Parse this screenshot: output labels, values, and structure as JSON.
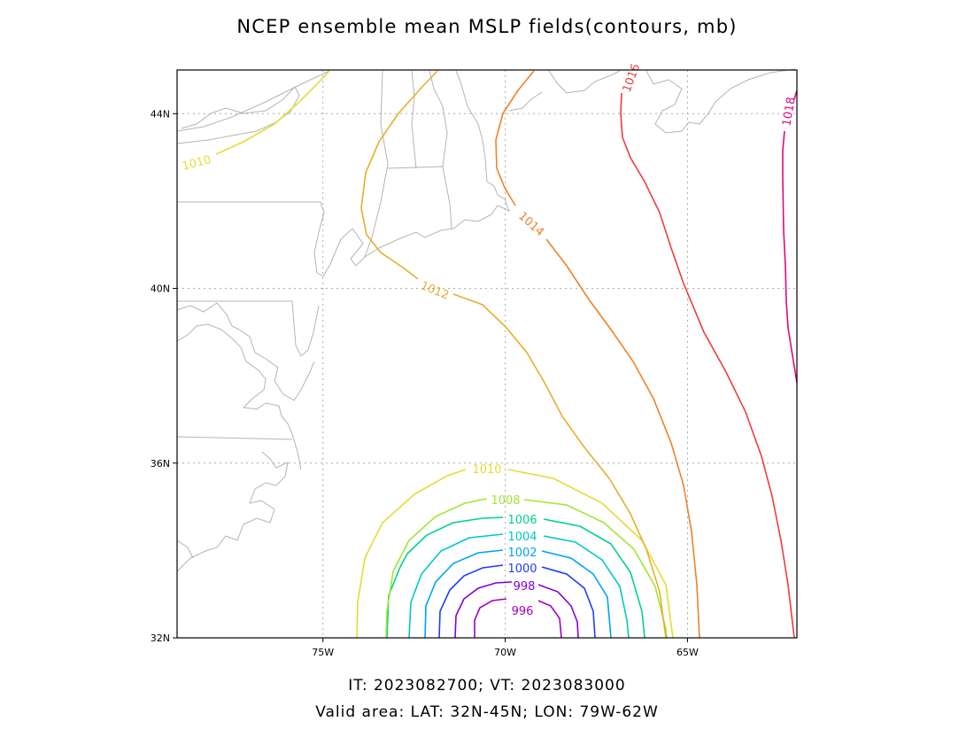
{
  "title": "NCEP ensemble mean MSLP fields(contours, mb)",
  "footer": {
    "line1": "IT: 2023082700; VT: 2023083000",
    "line2": "Valid area: LAT: 32N-45N; LON: 79W-62W"
  },
  "map": {
    "lon_range": [
      -79,
      -62
    ],
    "lat_range": [
      32,
      45
    ],
    "x_ticks": [
      {
        "value": -75,
        "label": "75W"
      },
      {
        "value": -70,
        "label": "70W"
      },
      {
        "value": -65,
        "label": "65W"
      }
    ],
    "y_ticks": [
      {
        "value": 32,
        "label": "32N"
      },
      {
        "value": 36,
        "label": "36N"
      },
      {
        "value": 40,
        "label": "40N"
      },
      {
        "value": 44,
        "label": "44N"
      }
    ],
    "grid": "dotted",
    "coastline_color": "#b4b4b4"
  },
  "contours": {
    "unit": "mb",
    "levels": [
      {
        "value": 996,
        "label": "996",
        "color": "#a000c8"
      },
      {
        "value": 998,
        "label": "998",
        "color": "#8200dc"
      },
      {
        "value": 1000,
        "label": "1000",
        "color": "#1e3cff"
      },
      {
        "value": 1002,
        "label": "1002",
        "color": "#00a0ff"
      },
      {
        "value": 1004,
        "label": "1004",
        "color": "#00c8c8"
      },
      {
        "value": 1006,
        "label": "1006",
        "color": "#00d28c"
      },
      {
        "value": 1008,
        "label": "1008",
        "color": "#a0e632"
      },
      {
        "value": 1010,
        "label": "1010",
        "color": "#e6dc32"
      },
      {
        "value": 1012,
        "label": "1012",
        "color": "#e6af2d"
      },
      {
        "value": 1014,
        "label": "1014",
        "color": "#f08228"
      },
      {
        "value": 1016,
        "label": "1016",
        "color": "#f03c3c"
      },
      {
        "value": 1018,
        "label": "1018",
        "color": "#dc0a82"
      }
    ]
  }
}
